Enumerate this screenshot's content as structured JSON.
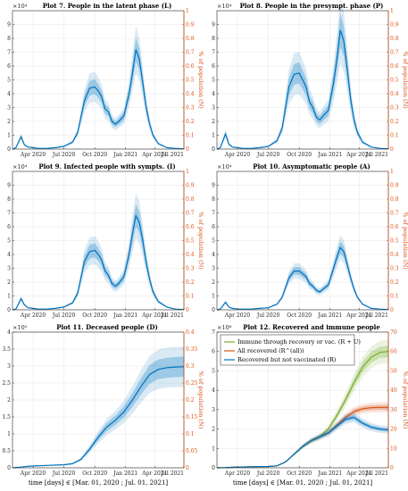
{
  "chart_data": [
    {
      "id": "p7",
      "type": "area",
      "title": "Plot 7. People in the latent phase (L)",
      "multiplier": "×10⁴",
      "ylabel_right": "% of population (N)",
      "ylim": [
        0,
        10
      ],
      "yticks": [
        "0",
        "1",
        "2",
        "3",
        "4",
        "5",
        "6",
        "7",
        "8",
        "9"
      ],
      "ylim_right": [
        0,
        1
      ],
      "yticks_right": [
        "0",
        "0.1",
        "0.2",
        "0.3",
        "0.4",
        "0.5",
        "0.6",
        "0.7",
        "0.8",
        "0.9",
        "1"
      ],
      "xticks": [
        "Apr 2020",
        "Jul 2020",
        "Oct 2020",
        "Jan 2021",
        "Apr 2021",
        "Jul 2021"
      ],
      "xlabel": "",
      "x": [
        0,
        0.02,
        0.05,
        0.07,
        0.09,
        0.12,
        0.15,
        0.2,
        0.25,
        0.3,
        0.35,
        0.38,
        0.42,
        0.45,
        0.48,
        0.5,
        0.52,
        0.54,
        0.56,
        0.58,
        0.6,
        0.62,
        0.65,
        0.68,
        0.7,
        0.72,
        0.74,
        0.76,
        0.78,
        0.8,
        0.82,
        0.85,
        0.9,
        0.95,
        1
      ],
      "series": [
        {
          "values": [
            0,
            0.1,
            0.9,
            0.3,
            0.15,
            0.1,
            0.05,
            0.05,
            0.1,
            0.2,
            0.5,
            1.2,
            3.5,
            4.4,
            4.5,
            4.2,
            3.8,
            2.9,
            2.7,
            2.0,
            1.8,
            2.0,
            2.4,
            4.0,
            5.5,
            7.2,
            6.5,
            4.8,
            3.0,
            1.8,
            1.0,
            0.4,
            0.1,
            0.05,
            0.02
          ],
          "band_frac": 0.12
        }
      ],
      "legend": []
    },
    {
      "id": "p8",
      "type": "area",
      "title": "Plot 8. People in the presympt. phase (P)",
      "multiplier": "×10⁴",
      "ylabel_right": "% of population (N)",
      "ylim": [
        0,
        10
      ],
      "yticks": [
        "0",
        "1",
        "2",
        "3",
        "4",
        "5",
        "6",
        "7",
        "8",
        "9"
      ],
      "ylim_right": [
        0,
        1
      ],
      "yticks_right": [
        "0",
        "0.1",
        "0.2",
        "0.3",
        "0.4",
        "0.5",
        "0.6",
        "0.7",
        "0.8",
        "0.9",
        "1"
      ],
      "xticks": [
        "Apr 2020",
        "Jul 2020",
        "Oct 2020",
        "Jan 2021",
        "Apr 2021",
        "Jul 2021"
      ],
      "xlabel": "",
      "x": [
        0,
        0.02,
        0.05,
        0.07,
        0.09,
        0.12,
        0.15,
        0.2,
        0.25,
        0.3,
        0.35,
        0.38,
        0.42,
        0.45,
        0.48,
        0.5,
        0.52,
        0.54,
        0.56,
        0.58,
        0.6,
        0.62,
        0.65,
        0.68,
        0.7,
        0.72,
        0.74,
        0.76,
        0.78,
        0.8,
        0.82,
        0.85,
        0.9,
        0.95,
        1
      ],
      "series": [
        {
          "values": [
            0,
            0.1,
            1.1,
            0.35,
            0.15,
            0.1,
            0.05,
            0.05,
            0.1,
            0.2,
            0.6,
            1.5,
            4.5,
            5.4,
            5.5,
            5.0,
            4.5,
            3.4,
            3.0,
            2.3,
            2.1,
            2.4,
            2.8,
            4.8,
            6.5,
            8.6,
            7.8,
            5.8,
            3.6,
            2.1,
            1.2,
            0.5,
            0.15,
            0.05,
            0.02
          ],
          "band_frac": 0.14
        }
      ],
      "legend": []
    },
    {
      "id": "p9",
      "type": "area",
      "title": "Plot 9. Infected people with sympts. (I)",
      "multiplier": "×10⁴",
      "ylabel_right": "% of population (N)",
      "ylim": [
        0,
        10
      ],
      "yticks": [
        "0",
        "1",
        "2",
        "3",
        "4",
        "5",
        "6",
        "7",
        "8",
        "9"
      ],
      "ylim_right": [
        0,
        1
      ],
      "yticks_right": [
        "0",
        "0.1",
        "0.2",
        "0.3",
        "0.4",
        "0.5",
        "0.6",
        "0.7",
        "0.8",
        "0.9",
        "1"
      ],
      "xticks": [
        "Apr 2020",
        "Jul 2020",
        "Oct 2020",
        "Jan 2021",
        "Apr 2021",
        "Jul 2021"
      ],
      "xlabel": "",
      "x": [
        0,
        0.02,
        0.05,
        0.07,
        0.09,
        0.12,
        0.15,
        0.2,
        0.25,
        0.3,
        0.35,
        0.38,
        0.42,
        0.45,
        0.48,
        0.5,
        0.52,
        0.54,
        0.56,
        0.58,
        0.6,
        0.62,
        0.65,
        0.68,
        0.7,
        0.72,
        0.74,
        0.76,
        0.78,
        0.8,
        0.82,
        0.85,
        0.9,
        0.95,
        1
      ],
      "series": [
        {
          "values": [
            0,
            0.05,
            0.8,
            0.35,
            0.15,
            0.1,
            0.05,
            0.05,
            0.1,
            0.2,
            0.5,
            1.2,
            3.5,
            4.2,
            4.3,
            4.0,
            3.6,
            2.8,
            2.5,
            1.9,
            1.7,
            1.9,
            2.4,
            4.0,
            5.5,
            6.8,
            6.3,
            5.0,
            3.4,
            2.2,
            1.3,
            0.6,
            0.2,
            0.05,
            0.02
          ],
          "band_frac": 0.12
        }
      ],
      "legend": []
    },
    {
      "id": "p10",
      "type": "area",
      "title": "Plot 10. Asymptomatic people (A)",
      "multiplier": "×10⁴",
      "ylabel_right": "% of population (N)",
      "ylim": [
        0,
        10
      ],
      "yticks": [
        "0",
        "1",
        "2",
        "3",
        "4",
        "5",
        "6",
        "7",
        "8",
        "9"
      ],
      "ylim_right": [
        0,
        1
      ],
      "yticks_right": [
        "0",
        "0.1",
        "0.2",
        "0.3",
        "0.4",
        "0.5",
        "0.6",
        "0.7",
        "0.8",
        "0.9",
        "1"
      ],
      "xticks": [
        "Apr 2020",
        "Jul 2020",
        "Oct 2020",
        "Jan 2021",
        "Apr 2021",
        "Jul 2021"
      ],
      "xlabel": "",
      "x": [
        0,
        0.02,
        0.05,
        0.07,
        0.09,
        0.12,
        0.15,
        0.2,
        0.25,
        0.3,
        0.35,
        0.38,
        0.42,
        0.45,
        0.48,
        0.5,
        0.52,
        0.54,
        0.56,
        0.58,
        0.6,
        0.62,
        0.65,
        0.68,
        0.7,
        0.72,
        0.74,
        0.76,
        0.78,
        0.8,
        0.82,
        0.85,
        0.9,
        0.95,
        1
      ],
      "series": [
        {
          "values": [
            0,
            0.05,
            0.55,
            0.2,
            0.1,
            0.05,
            0.05,
            0.05,
            0.1,
            0.15,
            0.4,
            0.9,
            2.3,
            2.8,
            2.8,
            2.6,
            2.4,
            1.9,
            1.7,
            1.4,
            1.3,
            1.5,
            1.8,
            3.0,
            3.8,
            4.5,
            4.2,
            3.3,
            2.3,
            1.5,
            0.9,
            0.4,
            0.1,
            0.05,
            0.02
          ],
          "band_frac": 0.1
        }
      ],
      "legend": []
    },
    {
      "id": "p11",
      "type": "area",
      "title": "Plot 11. Deceased people (D)",
      "multiplier": "×10⁵",
      "ylabel_right": "% of population (N)",
      "ylim": [
        0,
        4
      ],
      "yticks": [
        "0",
        "0.5",
        "1",
        "1.5",
        "2",
        "2.5",
        "3",
        "3.5",
        "4"
      ],
      "ylim_right": [
        0,
        0.4
      ],
      "yticks_right": [
        "0",
        "0.05",
        "0.1",
        "0.15",
        "0.2",
        "0.25",
        "0.3",
        "0.35",
        "0.4"
      ],
      "xticks": [
        "Apr 2020",
        "Jul 2020",
        "Oct 2020",
        "Jan 2021",
        "Apr 2021",
        "Jul 2021"
      ],
      "xlabel": "time [days] ∈ [Mar. 01, 2020 ; Jul. 01, 2021]",
      "x": [
        0,
        0.05,
        0.1,
        0.2,
        0.3,
        0.35,
        0.4,
        0.45,
        0.5,
        0.55,
        0.6,
        0.65,
        0.7,
        0.75,
        0.8,
        0.85,
        0.9,
        0.95,
        1
      ],
      "series": [
        {
          "values": [
            0,
            0.02,
            0.05,
            0.07,
            0.09,
            0.12,
            0.25,
            0.55,
            0.9,
            1.2,
            1.4,
            1.65,
            2.0,
            2.4,
            2.75,
            2.9,
            2.95,
            2.97,
            2.98
          ],
          "band_frac": 0.1
        }
      ],
      "legend": []
    },
    {
      "id": "p12",
      "type": "line",
      "title": "Plot 12. Recovered and immune people",
      "multiplier": "×10⁶",
      "ylabel_right": "% of population (N)",
      "ylim": [
        0,
        7
      ],
      "yticks": [
        "0",
        "1",
        "2",
        "3",
        "4",
        "5",
        "6",
        "7"
      ],
      "ylim_right": [
        0,
        70
      ],
      "yticks_right": [
        "0",
        "10",
        "20",
        "30",
        "40",
        "50",
        "60",
        "70"
      ],
      "xticks": [
        "Apr 2020",
        "Jul 2020",
        "Oct 2020",
        "Jan 2021",
        "Apr 2021",
        "Jul 2021"
      ],
      "xlabel": "time [days] ∈ [Mar. 01, 2020 ; Jul. 01, 2021]",
      "x": [
        0,
        0.05,
        0.1,
        0.2,
        0.3,
        0.35,
        0.4,
        0.45,
        0.5,
        0.55,
        0.6,
        0.65,
        0.7,
        0.75,
        0.8,
        0.85,
        0.9,
        0.95,
        1
      ],
      "series": [
        {
          "name": "Immune through recovery or vac. (R + U)",
          "color": "#77ac30",
          "values": [
            0,
            0.01,
            0.03,
            0.05,
            0.07,
            0.1,
            0.3,
            0.7,
            1.1,
            1.4,
            1.6,
            2.0,
            2.7,
            3.5,
            4.4,
            5.2,
            5.7,
            5.95,
            6.0
          ],
          "band_frac": 0.05
        },
        {
          "name": "All recovered (R^(all))",
          "color": "#d95319",
          "values": [
            0,
            0.01,
            0.03,
            0.05,
            0.07,
            0.1,
            0.3,
            0.7,
            1.1,
            1.4,
            1.6,
            1.8,
            2.2,
            2.6,
            2.9,
            3.05,
            3.1,
            3.12,
            3.12
          ],
          "band_frac": 0.04
        },
        {
          "name": "Recovered but not vaccinated (R)",
          "color": "#0072bd",
          "values": [
            0,
            0.01,
            0.03,
            0.05,
            0.07,
            0.1,
            0.3,
            0.7,
            1.1,
            1.4,
            1.6,
            1.8,
            2.15,
            2.5,
            2.6,
            2.3,
            2.1,
            2.0,
            1.95
          ],
          "band_frac": 0.05
        }
      ],
      "legend": [
        {
          "label": "Immune through recovery or vac. (R + U)",
          "color": "#77ac30"
        },
        {
          "label": "All recovered (R^(all))",
          "color": "#d95319"
        },
        {
          "label": "Recovered but not vaccinated (R)",
          "color": "#0072bd"
        }
      ]
    }
  ]
}
